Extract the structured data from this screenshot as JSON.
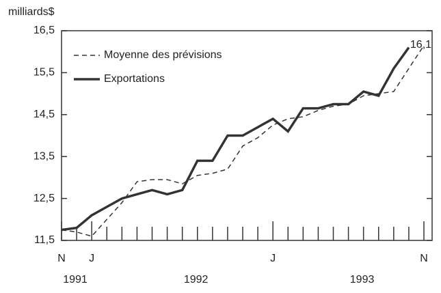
{
  "chart_data": {
    "type": "line",
    "y_label": "milliards$",
    "categories": [
      "N",
      null,
      "J",
      null,
      null,
      null,
      null,
      null,
      null,
      null,
      null,
      null,
      null,
      null,
      "J",
      null,
      null,
      null,
      null,
      null,
      null,
      null,
      null,
      null,
      "N"
    ],
    "year_labels": [
      "1991",
      "1992",
      "1993"
    ],
    "series": [
      {
        "name": "Moyenne des prévisions",
        "color": "#333333",
        "dash": true,
        "values": [
          11.75,
          11.7,
          11.6,
          12.0,
          12.4,
          12.9,
          12.95,
          12.95,
          12.85,
          13.05,
          13.1,
          13.2,
          13.75,
          13.95,
          14.25,
          14.4,
          14.45,
          14.6,
          14.7,
          14.75,
          14.95,
          15.0,
          15.05,
          15.6,
          16.15
        ]
      },
      {
        "name": "Exportations",
        "color": "#333333",
        "dash": false,
        "values": [
          11.75,
          11.8,
          12.1,
          12.3,
          12.5,
          12.6,
          12.7,
          12.6,
          12.7,
          13.4,
          13.4,
          14.0,
          14.0,
          14.2,
          14.4,
          14.1,
          14.65,
          14.65,
          14.75,
          14.75,
          15.05,
          14.95,
          15.6,
          16.1,
          null
        ],
        "value_labels": [
          null,
          null,
          null,
          null,
          null,
          null,
          null,
          null,
          null,
          null,
          null,
          null,
          null,
          null,
          null,
          null,
          null,
          null,
          null,
          null,
          null,
          null,
          null,
          "16,1",
          null
        ]
      }
    ],
    "ylim": [
      11.5,
      16.5
    ],
    "yticks": [
      {
        "value": 11.5,
        "label": "11,5"
      },
      {
        "value": 12.5,
        "label": "12,5"
      },
      {
        "value": 13.5,
        "label": "13,5"
      },
      {
        "value": 14.5,
        "label": "14,5"
      },
      {
        "value": 15.5,
        "label": "15,5"
      },
      {
        "value": 16.5,
        "label": "16,5"
      }
    ],
    "legend": "upper left",
    "grid": false
  }
}
